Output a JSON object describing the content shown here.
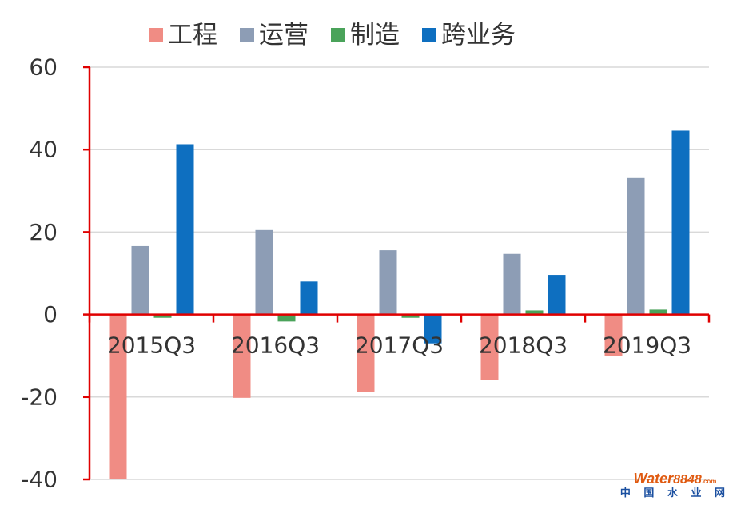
{
  "chart_data": {
    "type": "bar",
    "categories": [
      "2015Q3",
      "2016Q3",
      "2017Q3",
      "2018Q3",
      "2019Q3"
    ],
    "series": [
      {
        "name": "工程",
        "color": "#f08c84",
        "values": [
          -40,
          -20.2,
          -18.7,
          -15.8,
          -10
        ]
      },
      {
        "name": "运营",
        "color": "#8d9db5",
        "values": [
          16.6,
          20.5,
          15.6,
          14.7,
          33.1
        ]
      },
      {
        "name": "制造",
        "color": "#4aa35a",
        "values": [
          -0.8,
          -1.7,
          -0.8,
          1.0,
          1.2
        ]
      },
      {
        "name": "跨业务",
        "color": "#0e6fc0",
        "values": [
          41.3,
          8.0,
          -7.0,
          9.6,
          44.6
        ]
      }
    ],
    "ylim": [
      -40,
      60
    ],
    "yticks": [
      -40,
      -20,
      0,
      20,
      40,
      60
    ],
    "grid": true,
    "legend_position": "top",
    "axis_color": "#e00000"
  },
  "watermark": {
    "brand_word": "Water",
    "brand_number": "8848",
    "brand_suffix": ".com",
    "subtitle": "中 国 水 业 网"
  }
}
